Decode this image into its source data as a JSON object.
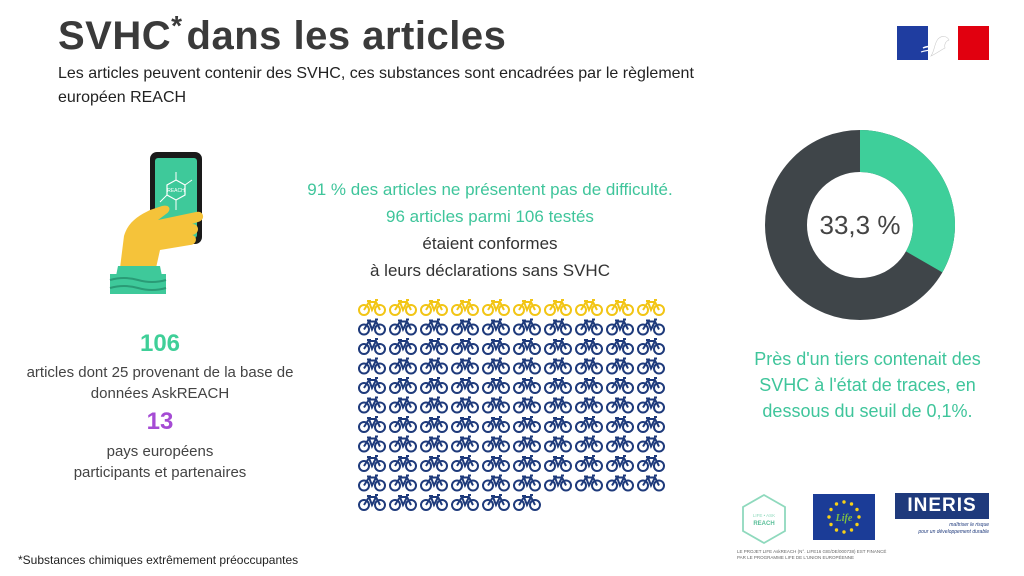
{
  "header": {
    "title_main": "SVHC",
    "title_star": "*",
    "title_rest": "dans les articles",
    "subtitle": "Les articles peuvent contenir des SVHC, ces substances sont encadrées par le règlement européen REACH"
  },
  "left_stats": {
    "articles_count": "106",
    "articles_text": "articles dont 25 provenant de la base de données AskREACH",
    "countries_count": "13",
    "countries_text_line1": "pays européens",
    "countries_text_line2": "participants et partenaires",
    "phone_icon_text": "REACH"
  },
  "middle": {
    "line1": "91 % des articles ne présentent pas de difficulté.",
    "line2": "96 articles parmi 106 testés",
    "line3": "étaient conformes",
    "line4": "à leurs déclarations sans SVHC"
  },
  "bike_grid": {
    "icon": "bicycle-icon",
    "total": 106,
    "highlighted": 10,
    "columns": 10,
    "highlight_color": "#f2c515",
    "base_color": "#1e3a7b"
  },
  "donut": {
    "label": "33,3 %",
    "fraction": 0.333,
    "fill_color": "#3ecf9a",
    "rest_color": "#3f4549"
  },
  "right_text": "Près d'un tiers contenait des SVHC à l'état de traces, en dessous du seuil de 0,1%.",
  "footnote": "*Substances chimiques extrêmement préoccupantes",
  "logos": {
    "reach_line1": "LIFE • ASK",
    "reach_line2": "REACH",
    "eu_text": "Life",
    "ineris_name": "INERIS",
    "ineris_tagline_line1": "maîtriser le risque",
    "ineris_tagline_line2": "pour un développement durable",
    "caption": "LE PROJET LIFE AskREACH (N°. LIFE16 GIE/DE/000738) EST FINANCÉ PAR LE PROGRAMME LIFE DE L'UNION EUROPÉENNE"
  }
}
